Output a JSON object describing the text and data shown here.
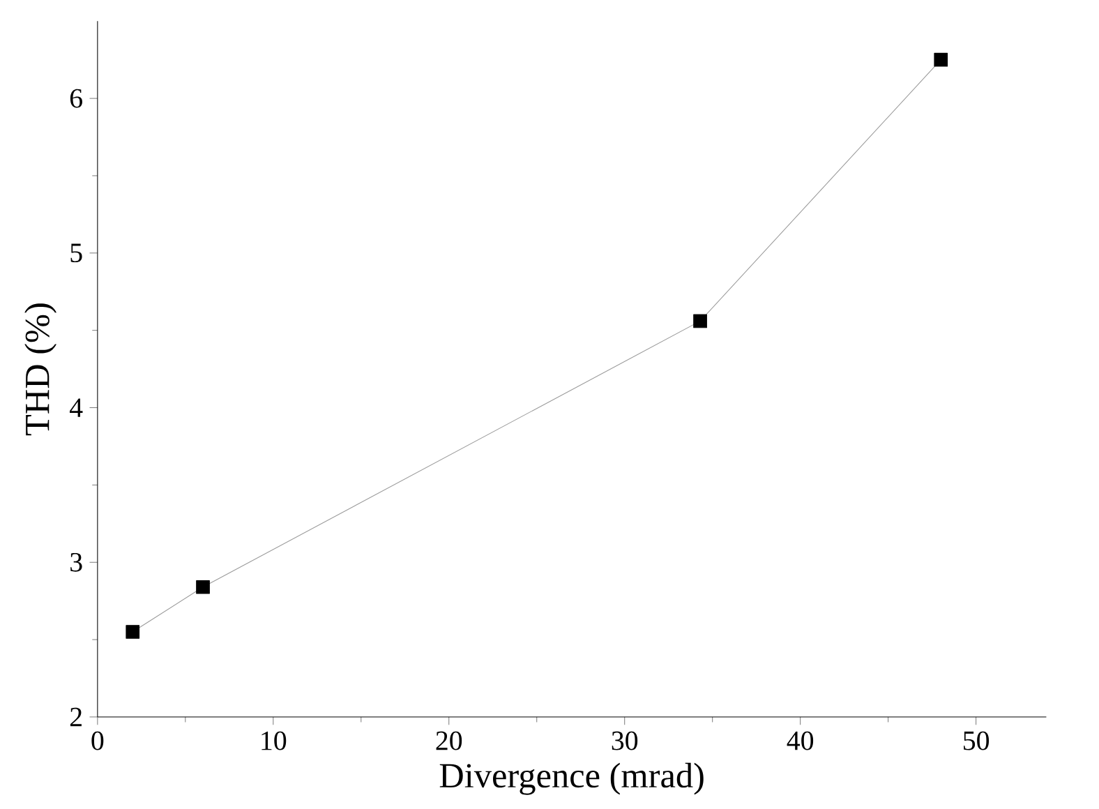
{
  "chart_data": {
    "type": "line",
    "xlabel": "Divergence (mrad)",
    "ylabel": "THD (%)",
    "x": [
      2,
      6,
      34.3,
      48
    ],
    "series": [
      {
        "color": "#999999",
        "values": [
          2.55,
          2.84,
          4.56,
          6.25
        ]
      }
    ],
    "marker": "square",
    "line_style": "solid",
    "xlim": [
      0,
      54
    ],
    "xticks": [
      0,
      10,
      20,
      30,
      40,
      50
    ],
    "ylim": [
      2,
      6.5
    ],
    "yticks": [
      2,
      3,
      4,
      5,
      6
    ]
  }
}
